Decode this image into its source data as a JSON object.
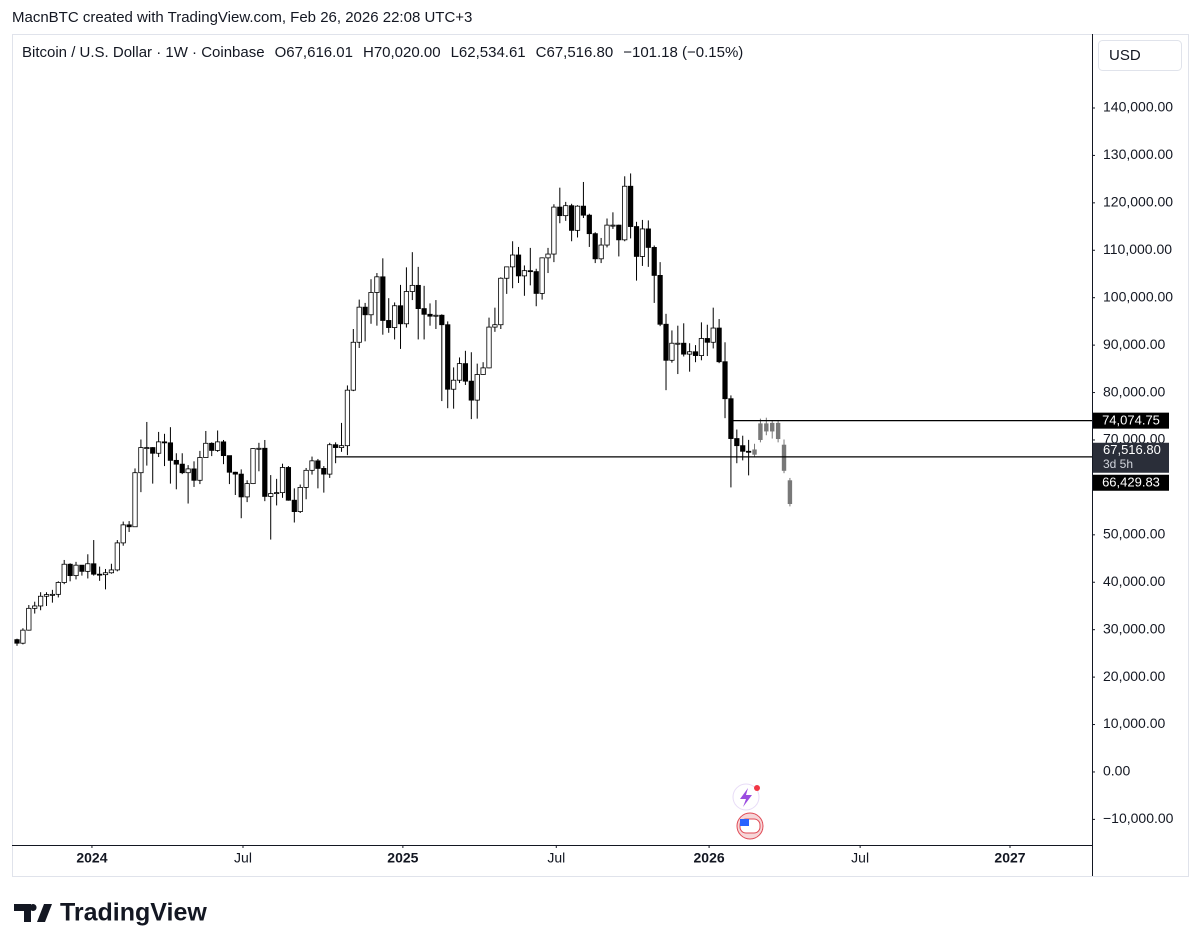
{
  "attribution": "MacnBTC created with TradingView.com, Feb 26, 2026 22:08 UTC+3",
  "currency": "USD",
  "brand": "TradingView",
  "chart_data": {
    "type": "candlestick",
    "title": "Bitcoin / U.S. Dollar · 1W · Coinbase",
    "ohlc_labels": {
      "open": "O67,616.01",
      "high": "H70,020.00",
      "low": "L62,534.61",
      "close": "C67,516.80",
      "change": "−101.18 (−0.15%)"
    },
    "colors": {
      "up": "#ffffff",
      "down": "#000000",
      "border": "#000000",
      "projection": "#787878",
      "line": "#000000"
    },
    "xlim": [
      -0.85,
      182.2
    ],
    "xticks": [
      {
        "value": 12.7,
        "label": "2024"
      },
      {
        "value": 38.3,
        "label": "Jul"
      },
      {
        "value": 65.4,
        "label": "2025"
      },
      {
        "value": 91.4,
        "label": "Jul"
      },
      {
        "value": 117.3,
        "label": "2026"
      },
      {
        "value": 142.9,
        "label": "Jul"
      },
      {
        "value": 168.3,
        "label": "2027"
      }
    ],
    "ylim": [
      -15400,
      155600
    ],
    "yticks": [
      {
        "value": -10000,
        "label": "−10,000.00"
      },
      {
        "value": 0,
        "label": "0.00"
      },
      {
        "value": 10000,
        "label": "10,000.00"
      },
      {
        "value": 20000,
        "label": "20,000.00"
      },
      {
        "value": 30000,
        "label": "30,000.00"
      },
      {
        "value": 40000,
        "label": "40,000.00"
      },
      {
        "value": 50000,
        "label": "50,000.00"
      },
      {
        "value": 70000,
        "label": "70,000.00"
      },
      {
        "value": 80000,
        "label": "80,000.00"
      },
      {
        "value": 90000,
        "label": "90,000.00"
      },
      {
        "value": 100000,
        "label": "100,000.00"
      },
      {
        "value": 110000,
        "label": "110,000.00"
      },
      {
        "value": 120000,
        "label": "120,000.00"
      },
      {
        "value": 130000,
        "label": "130,000.00"
      },
      {
        "value": 140000,
        "label": "140,000.00"
      }
    ],
    "candles": {
      "open": [
        27900,
        27150,
        29900,
        34500,
        35000,
        37050,
        37400,
        37450,
        39950,
        43800,
        41400,
        43600,
        42300,
        43900,
        41700,
        41600,
        42000,
        42600,
        48300,
        52100,
        51700,
        63100,
        68400,
        68400,
        67200,
        69600,
        69400,
        65700,
        64900,
        63100,
        63900,
        61500,
        66300,
        69300,
        67800,
        69600,
        66700,
        63200,
        62800,
        58000,
        60800,
        68200,
        68250,
        58100,
        58700,
        58900,
        64200,
        57300,
        54900,
        60000,
        63600,
        65600,
        64000,
        62800,
        69000,
        68400,
        68800,
        80500,
        90600,
        98000,
        96400,
        101100,
        104400,
        95200,
        93700,
        98300,
        94500,
        101300,
        102600,
        97700,
        96500,
        96100,
        96300,
        94300,
        80700,
        82600,
        86100,
        82400,
        78400,
        83800,
        85200,
        93800,
        94300,
        104100,
        106500,
        109000,
        104600,
        105700,
        105500,
        100900,
        108400,
        109200,
        119100,
        117300,
        119400,
        114200,
        119300,
        117400,
        113500,
        108200,
        111100,
        115300,
        115300,
        112200,
        123500,
        115000,
        108700,
        114500,
        110600,
        104700,
        94400,
        86800,
        90400,
        90400,
        88100,
        88600,
        87800,
        91400,
        90600,
        93600,
        86500,
        78700,
        70300,
        68800,
        67616.01
      ],
      "high": [
        28100,
        30300,
        35200,
        35900,
        37900,
        37900,
        38400,
        40200,
        44700,
        44000,
        44300,
        43600,
        45900,
        48900,
        43300,
        42800,
        43900,
        48900,
        52800,
        52900,
        64000,
        70100,
        73800,
        68500,
        71700,
        71300,
        72700,
        67200,
        67200,
        64700,
        65500,
        67700,
        71900,
        69500,
        72000,
        70000,
        66500,
        63300,
        63800,
        61500,
        68300,
        69400,
        70000,
        62600,
        61800,
        65000,
        64500,
        59800,
        60600,
        64100,
        66500,
        66000,
        64500,
        69400,
        69500,
        73600,
        81500,
        93400,
        99600,
        98900,
        103900,
        105200,
        108300,
        99900,
        99000,
        102700,
        106400,
        109600,
        106500,
        102500,
        98800,
        99500,
        96500,
        95000,
        85300,
        87400,
        88800,
        88500,
        86100,
        86400,
        95800,
        97900,
        104300,
        105800,
        111900,
        110700,
        106800,
        110500,
        106100,
        108500,
        110500,
        119700,
        123200,
        120200,
        119800,
        119500,
        124400,
        117700,
        113800,
        112600,
        116700,
        118000,
        115400,
        125600,
        126200,
        116000,
        116400,
        116300,
        111000,
        107500,
        96600,
        93100,
        94100,
        94600,
        90400,
        90000,
        94800,
        94300,
        97900,
        95500,
        90600,
        79400,
        72200,
        70900,
        70020
      ],
      "low": [
        26600,
        26900,
        29800,
        33400,
        34100,
        35000,
        35700,
        36800,
        39600,
        40200,
        40600,
        41400,
        40800,
        41400,
        40300,
        38500,
        41800,
        42300,
        47700,
        50600,
        51700,
        59000,
        64600,
        60800,
        66400,
        64500,
        60800,
        59600,
        62800,
        56600,
        60100,
        60700,
        66500,
        66600,
        67500,
        64900,
        60700,
        58400,
        53500,
        56900,
        60700,
        63400,
        57100,
        49000,
        56200,
        57800,
        57200,
        52600,
        54600,
        57500,
        62700,
        59800,
        58900,
        62000,
        65100,
        67500,
        66800,
        80300,
        89400,
        90800,
        94500,
        94100,
        92200,
        92600,
        91200,
        89200,
        93700,
        99500,
        91200,
        91200,
        94100,
        93400,
        78200,
        76700,
        76600,
        82000,
        81600,
        74400,
        74500,
        83700,
        85100,
        92800,
        93400,
        100800,
        102000,
        103100,
        100400,
        102600,
        98200,
        99600,
        105200,
        107500,
        115700,
        116200,
        111900,
        112700,
        116800,
        110700,
        107300,
        107300,
        110600,
        114500,
        108700,
        111900,
        112500,
        103600,
        106700,
        106500,
        98900,
        94000,
        80500,
        86300,
        83900,
        87600,
        84400,
        86400,
        86800,
        87700,
        89300,
        86200,
        74600,
        60000,
        65100,
        65700,
        62534.61
      ],
      "close": [
        27150,
        29900,
        34500,
        35000,
        37050,
        37400,
        37450,
        39950,
        43800,
        41400,
        43600,
        42300,
        43900,
        41700,
        41600,
        42000,
        42600,
        48300,
        52100,
        51700,
        63100,
        68400,
        68400,
        67200,
        69600,
        69400,
        65700,
        64900,
        63100,
        63900,
        61500,
        66300,
        69300,
        67800,
        69600,
        66700,
        63200,
        62800,
        58000,
        60800,
        68200,
        68250,
        58100,
        58700,
        58900,
        64200,
        57300,
        54900,
        60000,
        63600,
        65600,
        64000,
        62800,
        69000,
        68400,
        68800,
        80500,
        90600,
        98000,
        96400,
        101100,
        104400,
        95200,
        93700,
        98300,
        94500,
        101300,
        102600,
        97700,
        96500,
        96100,
        96300,
        94300,
        80700,
        82600,
        86100,
        82400,
        78400,
        83800,
        85200,
        93800,
        94300,
        104100,
        106500,
        109000,
        104600,
        105700,
        105500,
        100900,
        108400,
        109200,
        119100,
        117300,
        119400,
        114200,
        119300,
        117400,
        113500,
        108200,
        111100,
        115300,
        115300,
        112200,
        123500,
        115000,
        108700,
        114500,
        110600,
        104700,
        94400,
        86800,
        90400,
        90400,
        88100,
        88600,
        87800,
        91400,
        90600,
        93600,
        86500,
        78700,
        70300,
        68800,
        67616.01,
        67516.8
      ]
    },
    "projection": {
      "x": [
        125,
        126,
        127,
        128,
        129,
        130,
        131
      ],
      "open": [
        68000,
        70000,
        73500,
        71800,
        73600,
        69000,
        61500
      ],
      "high": [
        69200,
        74500,
        74700,
        74100,
        74000,
        70100,
        62000
      ],
      "low": [
        66500,
        69500,
        71000,
        70300,
        69500,
        63000,
        56000
      ],
      "close": [
        66900,
        73500,
        71800,
        73600,
        70200,
        63500,
        56500
      ]
    },
    "hlines": [
      {
        "value": 74074.75,
        "x_from": 121.4
      },
      {
        "value": 66429.83,
        "x_from": 53.9
      }
    ],
    "last_price": {
      "value": 67516.8,
      "label": "67,516.80",
      "countdown": "3d 5h"
    },
    "price_labels": [
      {
        "value": 74074.75,
        "label": "74,074.75"
      },
      {
        "value": 66429.83,
        "label": "66,429.83"
      }
    ]
  }
}
